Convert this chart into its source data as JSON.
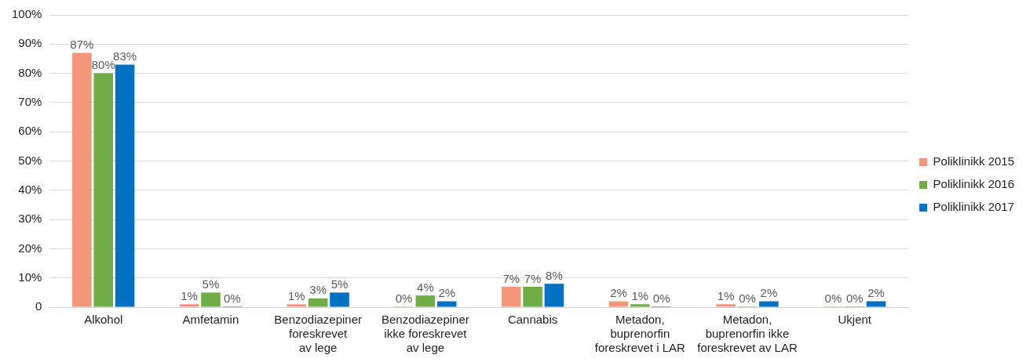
{
  "chart_data": {
    "type": "bar",
    "categories": [
      "Alkohol",
      "Amfetamin",
      "Benzodiazepiner\nforeskrevet\nav lege",
      "Benzodiazepiner\nikke foreskrevet\nav lege",
      "Cannabis",
      "Metadon,\nbuprenorfin\nforeskrevet i LAR",
      "Metadon,\nbuprenorfin ikke\nforeskrevet av LAR",
      "Ukjent"
    ],
    "series": [
      {
        "name": "Poliklinikk 2015",
        "color": "#f4967a",
        "values": [
          87,
          1,
          1,
          0,
          7,
          2,
          1,
          0
        ],
        "value_labels": [
          "87%",
          "1%",
          "1%",
          "0%",
          "7%",
          "2%",
          "1%",
          "0%"
        ]
      },
      {
        "name": "Poliklinikk 2016",
        "color": "#70ad47",
        "values": [
          80,
          5,
          3,
          4,
          7,
          1,
          0,
          0
        ],
        "value_labels": [
          "80%",
          "5%",
          "3%",
          "4%",
          "7%",
          "1%",
          "0%",
          "0%"
        ]
      },
      {
        "name": "Poliklinikk 2017",
        "color": "#0070c0",
        "values": [
          83,
          0,
          5,
          2,
          8,
          0,
          2,
          2
        ],
        "value_labels": [
          "83%",
          "0%",
          "5%",
          "2%",
          "8%",
          "0%",
          "2%",
          "2%"
        ]
      }
    ],
    "ylim": [
      0,
      100
    ],
    "yticks": [
      0,
      {
        "value": 10,
        "label": "10%"
      },
      {
        "value": 20,
        "label": "20%"
      },
      {
        "value": 30,
        "label": "30%"
      },
      {
        "value": 40,
        "label": "40%"
      },
      {
        "value": 50,
        "label": "50%"
      },
      {
        "value": 60,
        "label": "60%"
      },
      {
        "value": 70,
        "label": "70%"
      },
      {
        "value": 80,
        "label": "80%"
      },
      {
        "value": 90,
        "label": "90%"
      },
      {
        "value": 100,
        "label": "100%"
      }
    ],
    "grid": "y",
    "legend": "right"
  }
}
